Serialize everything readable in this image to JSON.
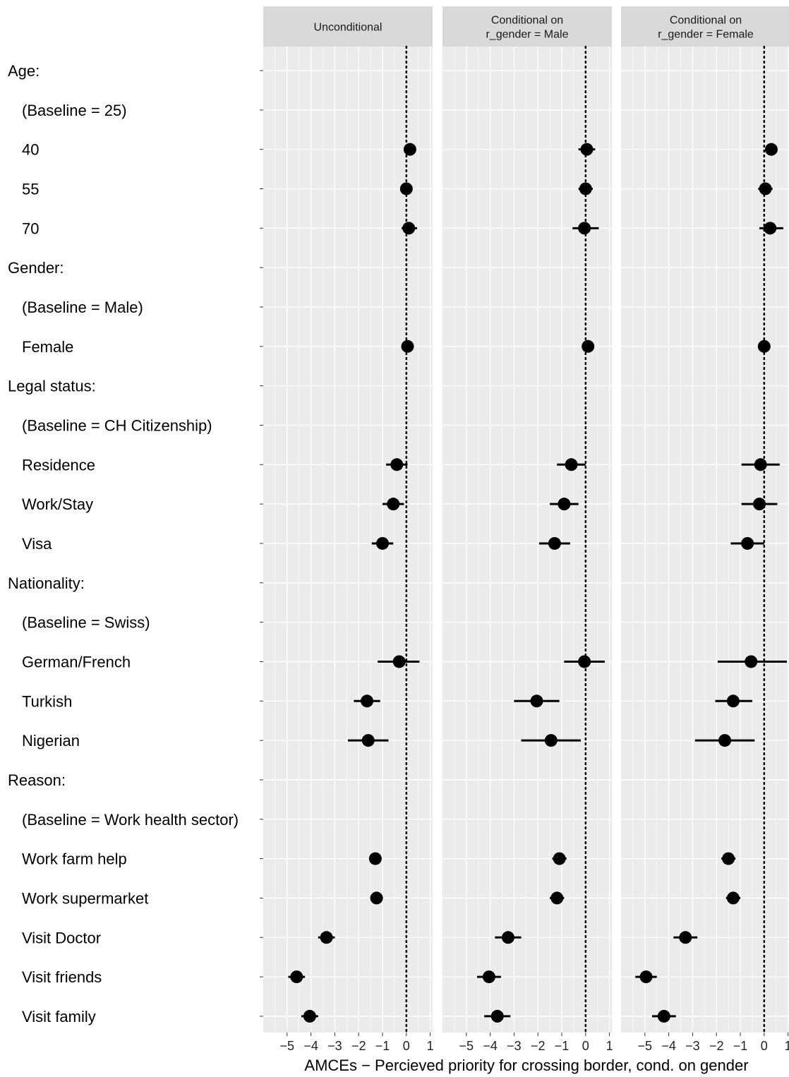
{
  "chart_data": {
    "type": "scatter",
    "xlabel": "AMCEs − Percieved priority for crossing border, cond. on gender",
    "xlim": [
      -6,
      1.1
    ],
    "xticks": [
      -5,
      -4,
      -3,
      -2,
      -1,
      0,
      1
    ],
    "xtick_labels": [
      "−5",
      "−4",
      "−3",
      "−2",
      "−1",
      "0",
      "1"
    ],
    "reference_line": 0,
    "rows": [
      "Age:",
      "(Baseline = 25)",
      "40",
      "55",
      "70",
      "Gender:",
      "(Baseline = Male)",
      "Female",
      "Legal status:",
      "(Baseline = CH Citizenship)",
      "Residence",
      "Work/Stay",
      "Visa",
      "Nationality:",
      "(Baseline = Swiss)",
      "German/French",
      "Turkish",
      "Nigerian",
      "Reason:",
      "(Baseline = Work health sector)",
      "Work farm help",
      "Work supermarket",
      "Visit Doctor",
      "Visit friends",
      "Visit family"
    ],
    "group_header_rows": [
      0,
      5,
      8,
      13,
      18
    ],
    "panels": [
      {
        "strip": [
          "Unconditional"
        ],
        "estimates": [
          {
            "level": "40",
            "est": 0.15,
            "lo": 0.0,
            "hi": 0.3
          },
          {
            "level": "55",
            "est": 0.0,
            "lo": -0.15,
            "hi": 0.15
          },
          {
            "level": "70",
            "est": 0.1,
            "lo": -0.2,
            "hi": 0.45
          },
          {
            "level": "Female",
            "est": 0.05,
            "lo": -0.08,
            "hi": 0.18
          },
          {
            "level": "Residence",
            "est": -0.4,
            "lo": -0.85,
            "hi": 0.05
          },
          {
            "level": "Work/Stay",
            "est": -0.55,
            "lo": -1.0,
            "hi": -0.1
          },
          {
            "level": "Visa",
            "est": -1.0,
            "lo": -1.45,
            "hi": -0.55
          },
          {
            "level": "German/French",
            "est": -0.3,
            "lo": -1.2,
            "hi": 0.55
          },
          {
            "level": "Turkish",
            "est": -1.65,
            "lo": -2.2,
            "hi": -1.1
          },
          {
            "level": "Nigerian",
            "est": -1.6,
            "lo": -2.45,
            "hi": -0.75
          },
          {
            "level": "Work farm help",
            "est": -1.3,
            "lo": -1.5,
            "hi": -1.1
          },
          {
            "level": "Work supermarket",
            "est": -1.25,
            "lo": -1.45,
            "hi": -1.05
          },
          {
            "level": "Visit Doctor",
            "est": -3.35,
            "lo": -3.7,
            "hi": -3.0
          },
          {
            "level": "Visit friends",
            "est": -4.6,
            "lo": -4.95,
            "hi": -4.25
          },
          {
            "level": "Visit family",
            "est": -4.05,
            "lo": -4.4,
            "hi": -3.7
          }
        ]
      },
      {
        "strip": [
          "Conditional on",
          "r_gender = Male"
        ],
        "estimates": [
          {
            "level": "40",
            "est": 0.05,
            "lo": -0.3,
            "hi": 0.4
          },
          {
            "level": "55",
            "est": 0.0,
            "lo": -0.3,
            "hi": 0.3
          },
          {
            "level": "70",
            "est": -0.05,
            "lo": -0.55,
            "hi": 0.55
          },
          {
            "level": "Female",
            "est": 0.1,
            "lo": -0.05,
            "hi": 0.25
          },
          {
            "level": "Residence",
            "est": -0.6,
            "lo": -1.2,
            "hi": 0.0
          },
          {
            "level": "Work/Stay",
            "est": -0.9,
            "lo": -1.5,
            "hi": -0.3
          },
          {
            "level": "Visa",
            "est": -1.3,
            "lo": -1.95,
            "hi": -0.65
          },
          {
            "level": "German/French",
            "est": -0.05,
            "lo": -0.9,
            "hi": 0.8
          },
          {
            "level": "Turkish",
            "est": -2.05,
            "lo": -3.0,
            "hi": -1.1
          },
          {
            "level": "Nigerian",
            "est": -1.45,
            "lo": -2.7,
            "hi": -0.2
          },
          {
            "level": "Work farm help",
            "est": -1.1,
            "lo": -1.4,
            "hi": -0.8
          },
          {
            "level": "Work supermarket",
            "est": -1.2,
            "lo": -1.5,
            "hi": -0.9
          },
          {
            "level": "Visit Doctor",
            "est": -3.25,
            "lo": -3.8,
            "hi": -2.7
          },
          {
            "level": "Visit friends",
            "est": -4.05,
            "lo": -4.55,
            "hi": -3.55
          },
          {
            "level": "Visit family",
            "est": -3.7,
            "lo": -4.25,
            "hi": -3.15
          }
        ]
      },
      {
        "strip": [
          "Conditional on",
          "r_gender = Female"
        ],
        "estimates": [
          {
            "level": "40",
            "est": 0.3,
            "lo": 0.05,
            "hi": 0.55
          },
          {
            "level": "55",
            "est": 0.05,
            "lo": -0.25,
            "hi": 0.35
          },
          {
            "level": "70",
            "est": 0.25,
            "lo": -0.2,
            "hi": 0.8
          },
          {
            "level": "Female",
            "est": 0.0,
            "lo": -0.15,
            "hi": 0.15
          },
          {
            "level": "Residence",
            "est": -0.15,
            "lo": -0.95,
            "hi": 0.65
          },
          {
            "level": "Work/Stay",
            "est": -0.2,
            "lo": -0.95,
            "hi": 0.55
          },
          {
            "level": "Visa",
            "est": -0.7,
            "lo": -1.4,
            "hi": 0.0
          },
          {
            "level": "German/French",
            "est": -0.55,
            "lo": -1.95,
            "hi": 0.95
          },
          {
            "level": "Turkish",
            "est": -1.3,
            "lo": -2.05,
            "hi": -0.5
          },
          {
            "level": "Nigerian",
            "est": -1.65,
            "lo": -2.9,
            "hi": -0.4
          },
          {
            "level": "Work farm help",
            "est": -1.5,
            "lo": -1.8,
            "hi": -1.2
          },
          {
            "level": "Work supermarket",
            "est": -1.3,
            "lo": -1.6,
            "hi": -1.0
          },
          {
            "level": "Visit Doctor",
            "est": -3.3,
            "lo": -3.8,
            "hi": -2.8
          },
          {
            "level": "Visit friends",
            "est": -4.95,
            "lo": -5.4,
            "hi": -4.5
          },
          {
            "level": "Visit family",
            "est": -4.2,
            "lo": -4.7,
            "hi": -3.7
          }
        ]
      }
    ],
    "colors": {
      "panel_bg": "#ebebeb",
      "strip_bg": "#d9d9d9",
      "grid": "#ffffff",
      "point": "#000000",
      "tick": "#333333"
    }
  }
}
